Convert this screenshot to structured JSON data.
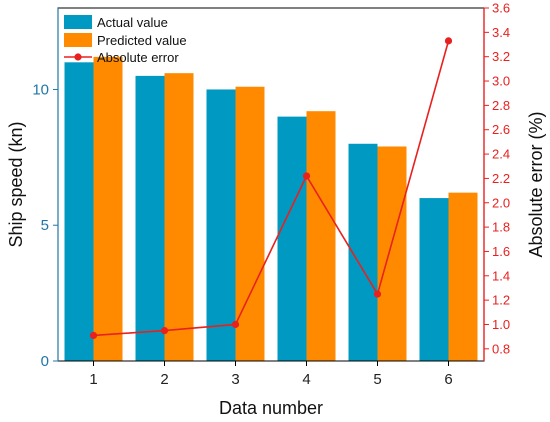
{
  "chart_data": {
    "type": "bar",
    "categories": [
      "1",
      "2",
      "3",
      "4",
      "5",
      "6"
    ],
    "series": [
      {
        "name": "Actual value",
        "values": [
          11.0,
          10.5,
          10.0,
          9.0,
          8.0,
          6.0
        ],
        "color": "#0099c2",
        "axis": "left",
        "kind": "bar"
      },
      {
        "name": "Predicted value",
        "values": [
          11.2,
          10.6,
          10.1,
          9.2,
          7.9,
          6.2
        ],
        "color": "#ff8a00",
        "axis": "left",
        "kind": "bar"
      },
      {
        "name": "Absolute error",
        "values": [
          0.91,
          0.95,
          1.0,
          2.22,
          1.25,
          3.33
        ],
        "color": "#e8211f",
        "axis": "right",
        "kind": "line"
      }
    ],
    "xlabel": "Data number",
    "ylabel": "Ship speed (kn)",
    "y2label": "Absolute error (%)",
    "ylim": [
      0,
      13
    ],
    "y2lim": [
      0.7,
      3.6
    ],
    "yticks": [
      "0",
      "5",
      "10"
    ],
    "y2ticks": [
      "0.8",
      "1.0",
      "1.2",
      "1.4",
      "1.6",
      "1.8",
      "2.0",
      "2.2",
      "2.4",
      "2.6",
      "2.8",
      "3.0",
      "3.2",
      "3.4",
      "3.6"
    ],
    "grid": false,
    "legend_position": "top-left"
  }
}
